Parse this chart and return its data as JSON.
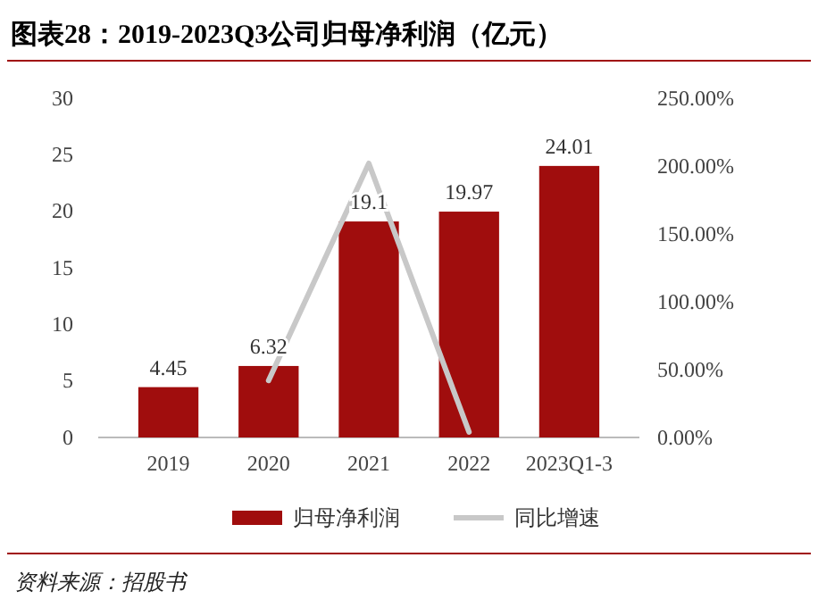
{
  "chart_data": {
    "type": "bar",
    "title": "图表28：2019-2023Q3公司归母净利润（亿元）",
    "categories": [
      "2019",
      "2020",
      "2021",
      "2022",
      "2023Q1-3"
    ],
    "series": [
      {
        "name": "归母净利润",
        "color": "#a00d0d",
        "values": [
          4.45,
          6.32,
          19.1,
          19.97,
          24.01
        ],
        "value_labels": [
          "4.45",
          "6.32",
          "19.1",
          "19.97",
          "24.01"
        ]
      },
      {
        "name": "同比增速",
        "type": "line",
        "axis": "y2",
        "color": "#c8c8c8",
        "values": [
          null,
          42,
          202,
          4,
          null
        ]
      }
    ],
    "ylim": [
      0,
      30
    ],
    "yticks": [
      0,
      5,
      10,
      15,
      20,
      25,
      30
    ],
    "y2lim": [
      0,
      250
    ],
    "y2ticks": [
      {
        "value": 0,
        "label": "0.00%"
      },
      {
        "value": 50,
        "label": "50.00%"
      },
      {
        "value": 100,
        "label": "100.00%"
      },
      {
        "value": 150,
        "label": "150.00%"
      },
      {
        "value": 200,
        "label": "200.00%"
      },
      {
        "value": 250,
        "label": "250.00%"
      }
    ],
    "legend": "bottom",
    "grid": false,
    "annotations": [
      "资料来源：招股书"
    ]
  }
}
